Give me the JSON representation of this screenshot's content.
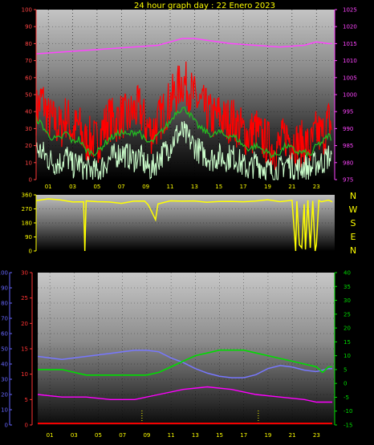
{
  "title": "24 hour graph day : 22 Enero 2023",
  "colors": {
    "gust": "#ff0000",
    "avg": "#22bb22",
    "wind": "#ccffcc",
    "pressure": "#ff44ff",
    "direction": "#ffff00",
    "humidity": "#7777ff",
    "temp": "#00dd00",
    "rain": "#ff00ff",
    "rainrate": "#ff0000",
    "tick_left_top": "#ff4444",
    "tick_right_top": "#ff44ff",
    "tick_dir": "#ffff00",
    "tick_humidity": "#6666ff",
    "tick_rain": "#ff3333",
    "tick_temp": "#00dd00",
    "x_tick": "#ffff00"
  },
  "chart_data": [
    {
      "type": "line",
      "name": "wind-pressure",
      "x_ticks": [
        "01",
        "03",
        "05",
        "07",
        "09",
        "11",
        "13",
        "15",
        "17",
        "19",
        "21",
        "23"
      ],
      "x_tick_hours": [
        1,
        3,
        5,
        7,
        9,
        11,
        13,
        15,
        17,
        19,
        21,
        23
      ],
      "xlim": [
        0,
        24.5
      ],
      "ylim_left": [
        0,
        100
      ],
      "ylim_right": [
        975,
        1025
      ],
      "yticks_left": [
        "100",
        "90",
        "80",
        "70",
        "60",
        "50",
        "40",
        "30",
        "20",
        "10",
        "0"
      ],
      "yticks_right": [
        "1025",
        "1020",
        "1015",
        "1010",
        "1005",
        "1000",
        "995",
        "990",
        "985",
        "980",
        "975"
      ],
      "series": [
        {
          "key": "gust",
          "x": [
            0,
            0.5,
            1,
            1.5,
            2,
            2.5,
            3,
            3.5,
            4,
            4.5,
            5,
            5.5,
            6,
            6.5,
            7,
            7.5,
            8,
            8.5,
            9,
            9.5,
            10,
            10.5,
            11,
            11.5,
            12,
            12.5,
            13,
            13.5,
            14,
            14.5,
            15,
            15.5,
            16,
            16.5,
            17,
            17.5,
            18,
            18.5,
            19,
            19.5,
            20,
            20.5,
            21,
            21.5,
            22,
            22.5,
            23,
            23.5,
            24,
            24.3
          ],
          "values": [
            40,
            48,
            36,
            34,
            30,
            38,
            28,
            32,
            22,
            24,
            22,
            30,
            36,
            34,
            38,
            36,
            40,
            42,
            32,
            28,
            34,
            40,
            46,
            52,
            58,
            54,
            48,
            44,
            40,
            36,
            38,
            34,
            36,
            32,
            28,
            26,
            30,
            24,
            22,
            18,
            20,
            26,
            24,
            20,
            22,
            18,
            28,
            26,
            34,
            32
          ]
        },
        {
          "key": "avg",
          "x": [
            0,
            0.5,
            1,
            1.5,
            2,
            2.5,
            3,
            3.5,
            4,
            4.5,
            5,
            5.5,
            6,
            6.5,
            7,
            7.5,
            8,
            8.5,
            9,
            9.5,
            10,
            10.5,
            11,
            11.5,
            12,
            12.5,
            13,
            13.5,
            14,
            14.5,
            15,
            15.5,
            16,
            16.5,
            17,
            17.5,
            18,
            18.5,
            19,
            19.5,
            20,
            20.5,
            21,
            21.5,
            22,
            22.5,
            23,
            23.5,
            24,
            24.3
          ],
          "values": [
            36,
            32,
            26,
            24,
            24,
            28,
            22,
            24,
            18,
            16,
            16,
            20,
            24,
            26,
            28,
            26,
            28,
            28,
            22,
            22,
            26,
            30,
            34,
            40,
            42,
            40,
            34,
            30,
            28,
            26,
            28,
            26,
            26,
            24,
            20,
            18,
            20,
            18,
            16,
            14,
            16,
            20,
            18,
            16,
            16,
            14,
            20,
            22,
            26,
            24
          ]
        },
        {
          "key": "wind",
          "x": [
            0,
            0.5,
            1,
            1.5,
            2,
            2.5,
            3,
            3.5,
            4,
            4.5,
            5,
            5.5,
            6,
            6.5,
            7,
            7.5,
            8,
            8.5,
            9,
            9.5,
            10,
            10.5,
            11,
            11.5,
            12,
            12.5,
            13,
            13.5,
            14,
            14.5,
            15,
            15.5,
            16,
            16.5,
            17,
            17.5,
            18,
            18.5,
            19,
            19.5,
            20,
            20.5,
            21,
            21.5,
            22,
            22.5,
            23,
            23.5,
            24,
            24.3
          ],
          "values": [
            18,
            16,
            12,
            10,
            10,
            14,
            8,
            10,
            6,
            6,
            4,
            8,
            12,
            14,
            16,
            14,
            12,
            14,
            8,
            6,
            12,
            16,
            20,
            26,
            28,
            24,
            20,
            16,
            14,
            12,
            14,
            12,
            14,
            12,
            8,
            6,
            10,
            8,
            6,
            4,
            6,
            10,
            8,
            6,
            8,
            6,
            10,
            10,
            14,
            12
          ]
        },
        {
          "key": "pressure",
          "axis": "right",
          "x": [
            0,
            2,
            4,
            6,
            8,
            10,
            11,
            12,
            13,
            14,
            16,
            18,
            20,
            22,
            23,
            24,
            24.3
          ],
          "values": [
            1012,
            1012.5,
            1013,
            1013.5,
            1014,
            1014.5,
            1015.5,
            1016.5,
            1016.5,
            1016,
            1015,
            1014.5,
            1014,
            1014.5,
            1015.5,
            1015,
            1015
          ]
        }
      ]
    },
    {
      "type": "line",
      "name": "wind-direction",
      "x_ticks": [
        "01",
        "03",
        "05",
        "07",
        "09",
        "11",
        "13",
        "15",
        "17",
        "19",
        "21",
        "23"
      ],
      "xlim": [
        0,
        24.5
      ],
      "ylim": [
        0,
        360
      ],
      "yticks": [
        "360",
        "270",
        "180",
        "90",
        "0"
      ],
      "compass_labels": [
        "N",
        "W",
        "S",
        "E",
        "N"
      ],
      "series": [
        {
          "key": "direction",
          "x": [
            0,
            1,
            2,
            3,
            3.9,
            4.0,
            4.1,
            5,
            6,
            7,
            8,
            8.9,
            9.2,
            9.5,
            9.8,
            10,
            11,
            12,
            13,
            14,
            15,
            16,
            17,
            18,
            19,
            20,
            21,
            21.3,
            21.4,
            21.6,
            21.8,
            22.0,
            22.1,
            22.3,
            22.5,
            22.7,
            22.9,
            23.0,
            23.2,
            23.4,
            24,
            24.3
          ],
          "values": [
            320,
            330,
            325,
            320,
            320,
            0,
            320,
            315,
            320,
            310,
            315,
            320,
            300,
            250,
            200,
            300,
            320,
            325,
            320,
            315,
            320,
            320,
            315,
            320,
            325,
            320,
            320,
            0,
            320,
            40,
            20,
            300,
            10,
            320,
            20,
            320,
            0,
            40,
            320,
            320,
            320,
            320
          ]
        }
      ]
    },
    {
      "type": "line",
      "name": "humidity-temp-rain",
      "x_ticks": [
        "01",
        "03",
        "05",
        "07",
        "09",
        "11",
        "13",
        "15",
        "17",
        "19",
        "21",
        "23"
      ],
      "xlim": [
        0,
        24.5
      ],
      "ylim_humidity": [
        0,
        100
      ],
      "ylim_rain": [
        0,
        30
      ],
      "ylim_temp": [
        -15,
        40
      ],
      "yticks_humidity": [
        "100",
        "90",
        "80",
        "70",
        "60",
        "50",
        "40",
        "30",
        "20",
        "10",
        "0"
      ],
      "yticks_rain": [
        "30",
        "25",
        "20",
        "15",
        "10",
        "5",
        "0"
      ],
      "yticks_temp": [
        "40",
        "35",
        "30",
        "25",
        "20",
        "15",
        "10",
        "5",
        "0",
        "-5",
        "-10",
        "-15"
      ],
      "series": [
        {
          "key": "humidity",
          "x": [
            0,
            1,
            2,
            3,
            4,
            5,
            6,
            7,
            8,
            9,
            10,
            11,
            12,
            13,
            14,
            15,
            16,
            17,
            18,
            19,
            20,
            21,
            22,
            23,
            24,
            24.3
          ],
          "values": [
            45,
            44,
            43,
            44,
            45,
            46,
            47,
            48,
            49,
            49,
            48,
            44,
            41,
            37,
            34,
            32,
            31,
            31,
            33,
            37,
            39,
            38,
            36,
            35,
            37,
            37
          ]
        },
        {
          "key": "temp",
          "axis": "temp",
          "x": [
            0,
            1,
            2,
            3,
            4,
            5,
            6,
            7,
            8,
            9,
            10,
            11,
            12,
            13,
            14,
            15,
            16,
            17,
            18,
            19,
            20,
            21,
            22,
            23,
            23.5,
            24,
            24.3
          ],
          "values": [
            5,
            5,
            5,
            4,
            3,
            3,
            3,
            3,
            3,
            3,
            4,
            6,
            8,
            10,
            11,
            12,
            12,
            12,
            11,
            10,
            9,
            8,
            7,
            6,
            4,
            6,
            6
          ]
        },
        {
          "key": "rain",
          "axis": "rain",
          "x": [
            0,
            2,
            4,
            6,
            8,
            10,
            12,
            14,
            16,
            18,
            20,
            22,
            23,
            24,
            24.3
          ],
          "values": [
            6,
            5.5,
            5.5,
            5,
            5,
            6,
            7,
            7.5,
            7,
            6,
            5.5,
            5,
            4.5,
            4.5,
            4.5
          ]
        },
        {
          "key": "rainrate",
          "axis": "rain",
          "x": [
            0,
            24.3
          ],
          "values": [
            0.3,
            0.3
          ]
        }
      ]
    }
  ]
}
